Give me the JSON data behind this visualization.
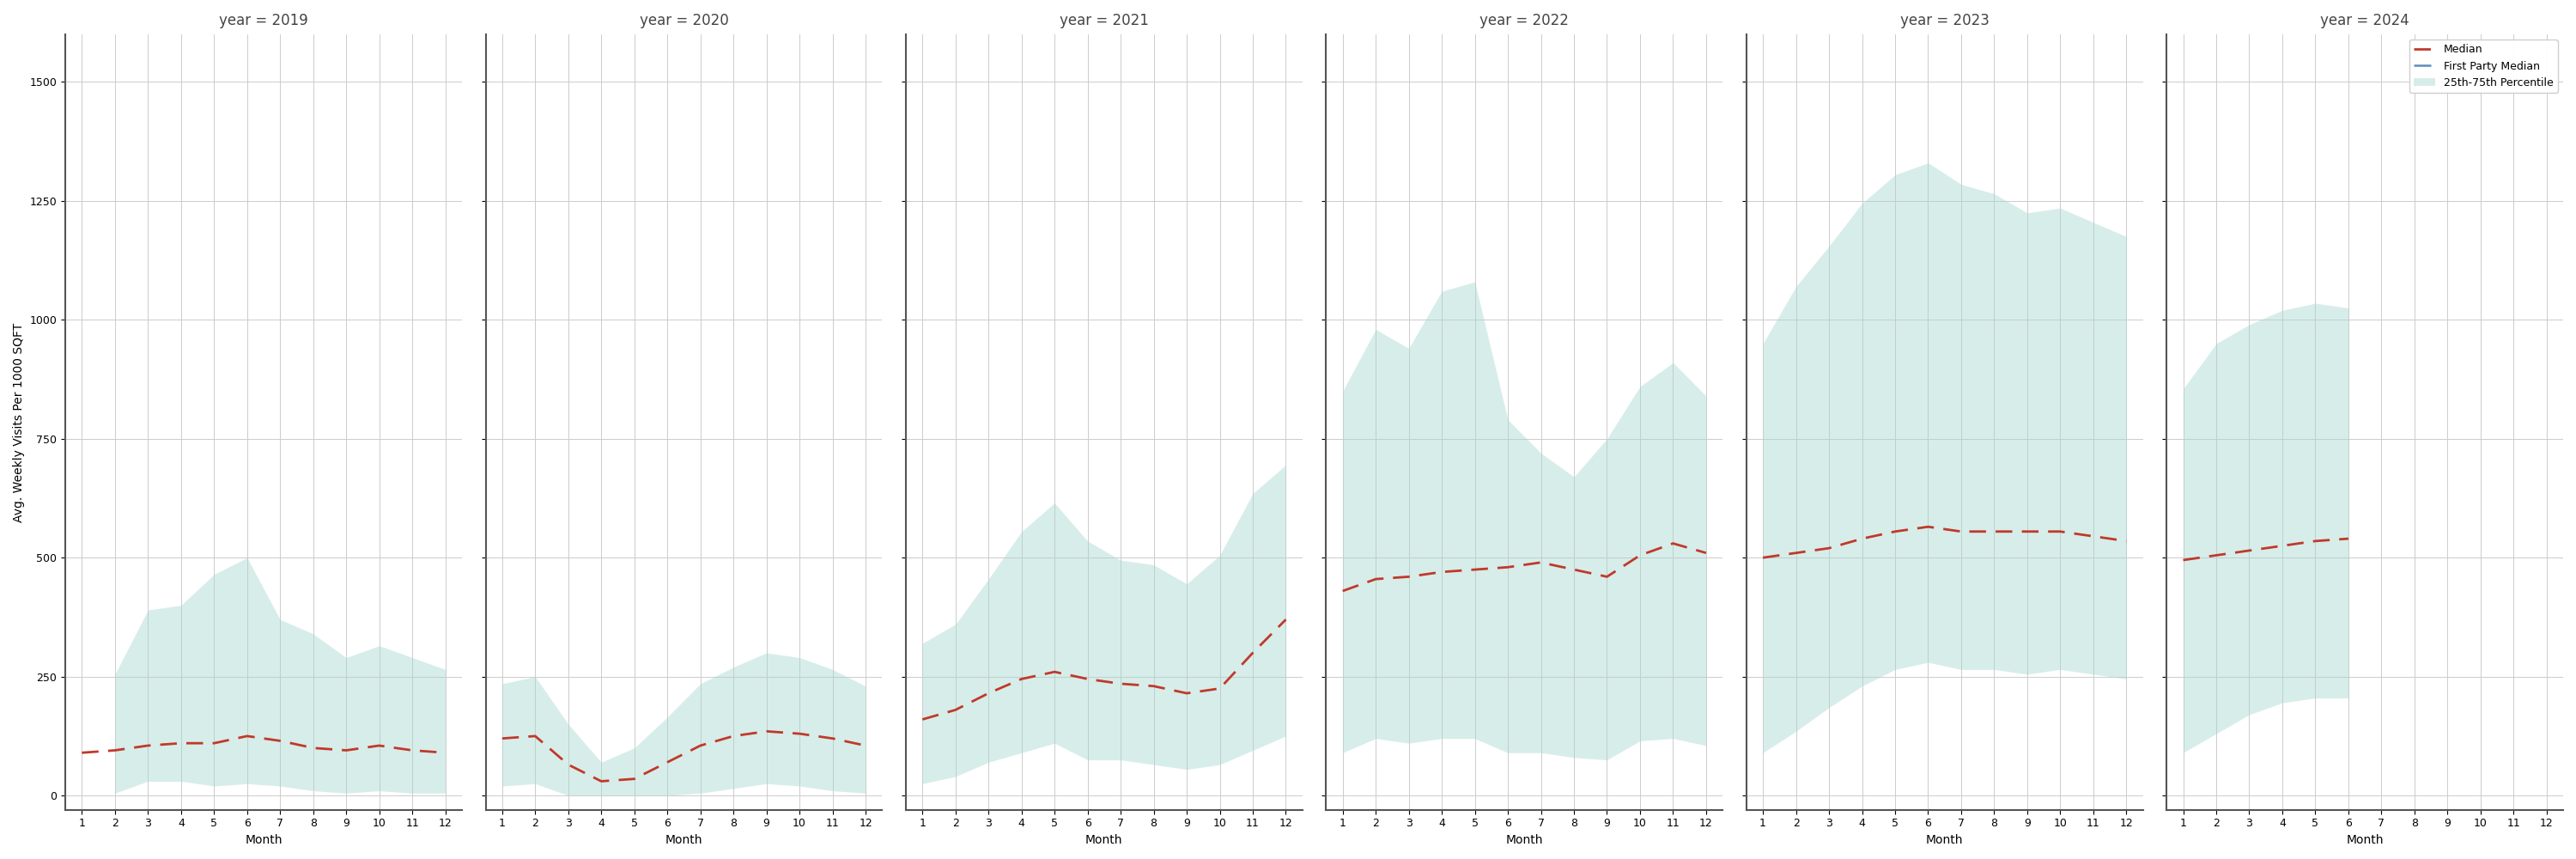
{
  "years": [
    2019,
    2020,
    2021,
    2022,
    2023,
    2024
  ],
  "months": [
    1,
    2,
    3,
    4,
    5,
    6,
    7,
    8,
    9,
    10,
    11,
    12
  ],
  "median": {
    "2019": [
      90,
      95,
      105,
      110,
      110,
      125,
      115,
      100,
      95,
      105,
      95,
      90
    ],
    "2020": [
      120,
      125,
      65,
      30,
      35,
      70,
      105,
      125,
      135,
      130,
      120,
      105
    ],
    "2021": [
      160,
      180,
      215,
      245,
      260,
      245,
      235,
      230,
      215,
      225,
      300,
      370
    ],
    "2022": [
      430,
      455,
      460,
      470,
      475,
      480,
      490,
      475,
      460,
      505,
      530,
      510
    ],
    "2023": [
      500,
      510,
      520,
      540,
      555,
      565,
      555,
      555,
      555,
      555,
      545,
      535
    ],
    "2024": [
      495,
      505,
      515,
      525,
      535,
      540,
      null,
      null,
      null,
      null,
      null,
      null
    ]
  },
  "p25": {
    "2019": [
      null,
      5,
      30,
      30,
      20,
      25,
      20,
      10,
      5,
      10,
      5,
      5
    ],
    "2020": [
      20,
      25,
      0,
      0,
      0,
      0,
      5,
      15,
      25,
      20,
      10,
      5
    ],
    "2021": [
      25,
      40,
      70,
      90,
      110,
      75,
      75,
      65,
      55,
      65,
      95,
      125
    ],
    "2022": [
      90,
      120,
      110,
      120,
      120,
      90,
      90,
      80,
      75,
      115,
      120,
      105
    ],
    "2023": [
      90,
      135,
      185,
      230,
      265,
      280,
      265,
      265,
      255,
      265,
      255,
      245
    ],
    "2024": [
      90,
      130,
      170,
      195,
      205,
      205,
      null,
      null,
      null,
      null,
      null,
      null
    ]
  },
  "p75": {
    "2019": [
      null,
      255,
      390,
      400,
      465,
      500,
      370,
      340,
      290,
      315,
      290,
      265
    ],
    "2020": [
      235,
      250,
      150,
      70,
      100,
      165,
      235,
      270,
      300,
      290,
      265,
      230
    ],
    "2021": [
      320,
      360,
      455,
      555,
      615,
      535,
      495,
      485,
      445,
      505,
      635,
      695
    ],
    "2022": [
      850,
      980,
      940,
      1060,
      1080,
      790,
      720,
      670,
      750,
      860,
      910,
      840
    ],
    "2023": [
      950,
      1070,
      1155,
      1245,
      1305,
      1330,
      1285,
      1265,
      1225,
      1235,
      1205,
      1175
    ],
    "2024": [
      855,
      950,
      990,
      1020,
      1035,
      1025,
      null,
      null,
      null,
      null,
      null,
      null
    ]
  },
  "first_party_median": {
    "2019": [
      null,
      null,
      null,
      null,
      null,
      null,
      null,
      null,
      null,
      null,
      null,
      null
    ],
    "2020": [
      null,
      null,
      null,
      null,
      null,
      null,
      null,
      null,
      null,
      null,
      null,
      null
    ],
    "2021": [
      null,
      null,
      null,
      null,
      null,
      null,
      null,
      null,
      null,
      null,
      null,
      null
    ],
    "2022": [
      null,
      null,
      null,
      null,
      null,
      null,
      null,
      null,
      null,
      null,
      null,
      null
    ],
    "2023": [
      null,
      null,
      null,
      null,
      null,
      null,
      null,
      null,
      null,
      null,
      null,
      null
    ],
    "2024": [
      null,
      null,
      null,
      null,
      null,
      null,
      null,
      null,
      null,
      null,
      null,
      null
    ]
  },
  "ylim": [
    -30,
    1600
  ],
  "yticks": [
    0,
    250,
    500,
    750,
    1000,
    1250,
    1500
  ],
  "fill_color": "#a8d8d0",
  "fill_alpha": 0.45,
  "median_color": "#c0392b",
  "first_party_color": "#5b8db8",
  "ylabel": "Avg. Weekly Visits Per 1000 SQFT",
  "xlabel": "Month",
  "background_color": "#ffffff",
  "grid_color": "#cccccc",
  "title_fontsize": 12,
  "tick_fontsize": 9,
  "label_fontsize": 10
}
